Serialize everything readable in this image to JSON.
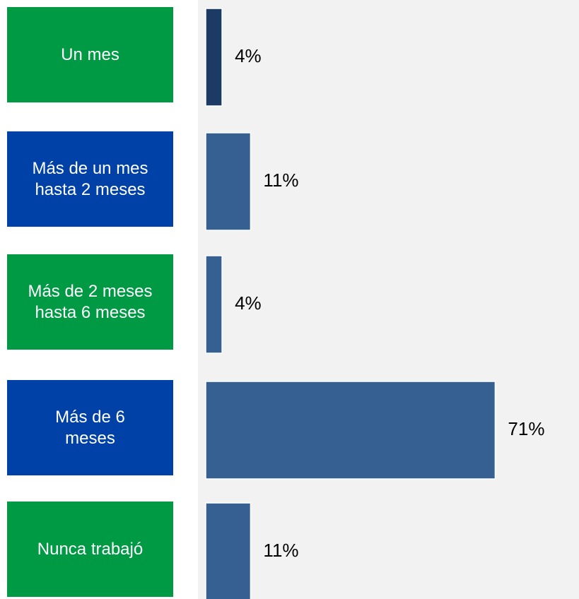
{
  "chart_data": {
    "type": "bar",
    "orientation": "horizontal",
    "categories": [
      "Un mes",
      "Más de un mes hasta 2 meses",
      "Más de 2 meses hasta 6 meses",
      "Más de 6 meses",
      "Nunca trabajó"
    ],
    "category_colors": [
      "#009a44",
      "#0041a8",
      "#009a44",
      "#0041a8",
      "#009a44"
    ],
    "values": [
      4,
      11,
      4,
      71,
      11
    ],
    "value_labels": [
      "4%",
      "11%",
      "4%",
      "71%",
      "11%"
    ],
    "colors": [
      "#1b3a64",
      "#376092",
      "#376092",
      "#376092",
      "#376092"
    ],
    "xlim": [
      0,
      90
    ]
  }
}
